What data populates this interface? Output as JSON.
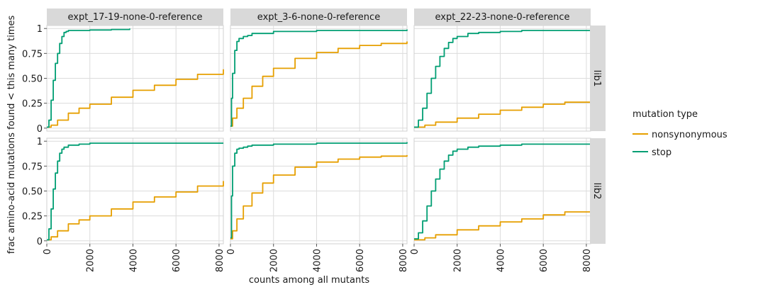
{
  "chart_data": {
    "type": "line",
    "xlabel": "counts among all mutants",
    "ylabel": "frac amino-acid mutations found < this many times",
    "xlim": [
      0,
      8200
    ],
    "ylim": [
      -0.03,
      1.03
    ],
    "x_ticks": [
      0,
      2000,
      4000,
      6000,
      8000
    ],
    "x_tick_labels": [
      "0",
      "2000",
      "4000",
      "6000",
      "8000"
    ],
    "y_ticks": [
      0,
      0.25,
      0.5,
      0.75,
      1
    ],
    "y_tick_labels": [
      "0",
      "0.25",
      "0.50",
      "0.75",
      "1"
    ],
    "grid": true,
    "columns": [
      "expt_17-19-none-0-reference",
      "expt_3-6-none-0-reference",
      "expt_22-23-none-0-reference"
    ],
    "rows": [
      "lib1",
      "lib2"
    ],
    "legend": {
      "title": "mutation type",
      "position": "right",
      "entries": [
        {
          "name": "nonsynonymous",
          "color": "#E69F00"
        },
        {
          "name": "stop",
          "color": "#009E73"
        }
      ]
    },
    "panels": [
      {
        "column": "expt_17-19-none-0-reference",
        "row": "lib1",
        "series": [
          {
            "name": "nonsynonymous",
            "x": [
              0,
              200,
              500,
              1000,
              1500,
              2000,
              3000,
              4000,
              5000,
              6000,
              7000,
              8200
            ],
            "y": [
              0.01,
              0.03,
              0.08,
              0.15,
              0.2,
              0.24,
              0.31,
              0.38,
              0.43,
              0.49,
              0.54,
              0.59
            ]
          },
          {
            "name": "stop",
            "x": [
              0,
              100,
              200,
              300,
              400,
              500,
              600,
              700,
              800,
              900,
              1000,
              2000,
              3000,
              3850
            ],
            "y": [
              0.01,
              0.08,
              0.28,
              0.48,
              0.65,
              0.75,
              0.85,
              0.92,
              0.96,
              0.97,
              0.98,
              0.985,
              0.99,
              1.0
            ]
          }
        ]
      },
      {
        "column": "expt_3-6-none-0-reference",
        "row": "lib1",
        "series": [
          {
            "name": "nonsynonymous",
            "x": [
              0,
              100,
              300,
              600,
              1000,
              1500,
              2000,
              3000,
              4000,
              5000,
              6000,
              7000,
              8200
            ],
            "y": [
              0.02,
              0.1,
              0.2,
              0.3,
              0.42,
              0.52,
              0.6,
              0.7,
              0.76,
              0.8,
              0.83,
              0.85,
              0.87
            ]
          },
          {
            "name": "stop",
            "x": [
              0,
              50,
              100,
              200,
              300,
              400,
              600,
              800,
              1000,
              2000,
              4000,
              8200
            ],
            "y": [
              0.02,
              0.3,
              0.55,
              0.78,
              0.87,
              0.9,
              0.92,
              0.93,
              0.95,
              0.97,
              0.98,
              0.99
            ]
          }
        ]
      },
      {
        "column": "expt_22-23-none-0-reference",
        "row": "lib1",
        "series": [
          {
            "name": "nonsynonymous",
            "x": [
              0,
              500,
              1000,
              2000,
              3000,
              4000,
              5000,
              6000,
              7000,
              8200
            ],
            "y": [
              0.01,
              0.03,
              0.06,
              0.1,
              0.14,
              0.18,
              0.21,
              0.24,
              0.26,
              0.3
            ]
          },
          {
            "name": "stop",
            "x": [
              0,
              200,
              400,
              600,
              800,
              1000,
              1200,
              1400,
              1600,
              1800,
              2000,
              2500,
              3000,
              4000,
              5000,
              6000,
              8200
            ],
            "y": [
              0.01,
              0.08,
              0.2,
              0.35,
              0.5,
              0.62,
              0.72,
              0.8,
              0.86,
              0.9,
              0.92,
              0.95,
              0.96,
              0.97,
              0.98,
              0.98,
              0.99
            ]
          }
        ]
      },
      {
        "column": "expt_17-19-none-0-reference",
        "row": "lib2",
        "series": [
          {
            "name": "nonsynonymous",
            "x": [
              0,
              200,
              500,
              1000,
              1500,
              2000,
              3000,
              4000,
              5000,
              6000,
              7000,
              8200
            ],
            "y": [
              0.01,
              0.04,
              0.1,
              0.17,
              0.21,
              0.25,
              0.32,
              0.39,
              0.44,
              0.49,
              0.55,
              0.6
            ]
          },
          {
            "name": "stop",
            "x": [
              0,
              100,
              200,
              300,
              400,
              500,
              600,
              700,
              800,
              1000,
              1500,
              2000,
              3000,
              8200
            ],
            "y": [
              0.01,
              0.12,
              0.32,
              0.52,
              0.68,
              0.8,
              0.88,
              0.92,
              0.94,
              0.96,
              0.97,
              0.98,
              0.98,
              0.98
            ]
          }
        ]
      },
      {
        "column": "expt_3-6-none-0-reference",
        "row": "lib2",
        "series": [
          {
            "name": "nonsynonymous",
            "x": [
              0,
              100,
              300,
              600,
              1000,
              1500,
              2000,
              3000,
              4000,
              5000,
              6000,
              7000,
              8200
            ],
            "y": [
              0.02,
              0.1,
              0.22,
              0.35,
              0.48,
              0.58,
              0.66,
              0.74,
              0.79,
              0.82,
              0.84,
              0.85,
              0.86
            ]
          },
          {
            "name": "stop",
            "x": [
              0,
              50,
              100,
              200,
              300,
              400,
              600,
              800,
              1000,
              2000,
              4000,
              8200
            ],
            "y": [
              0.03,
              0.45,
              0.75,
              0.88,
              0.92,
              0.93,
              0.94,
              0.95,
              0.96,
              0.97,
              0.98,
              0.99
            ]
          }
        ]
      },
      {
        "column": "expt_22-23-none-0-reference",
        "row": "lib2",
        "series": [
          {
            "name": "nonsynonymous",
            "x": [
              0,
              500,
              1000,
              2000,
              3000,
              4000,
              5000,
              6000,
              7000,
              8200
            ],
            "y": [
              0.01,
              0.03,
              0.06,
              0.11,
              0.15,
              0.19,
              0.22,
              0.26,
              0.29,
              0.33
            ]
          },
          {
            "name": "stop",
            "x": [
              0,
              200,
              400,
              600,
              800,
              1000,
              1200,
              1400,
              1600,
              1800,
              2000,
              2500,
              3000,
              4000,
              5000,
              6000,
              8200
            ],
            "y": [
              0.02,
              0.08,
              0.2,
              0.35,
              0.5,
              0.62,
              0.72,
              0.8,
              0.86,
              0.9,
              0.92,
              0.94,
              0.95,
              0.96,
              0.97,
              0.97,
              0.98
            ]
          }
        ]
      }
    ]
  }
}
